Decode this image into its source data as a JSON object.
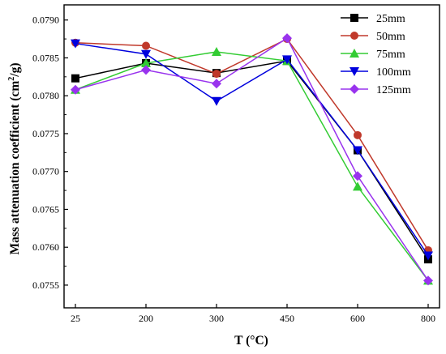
{
  "chart_data": {
    "type": "line",
    "x": [
      "25",
      "200",
      "300",
      "450",
      "600",
      "800"
    ],
    "xlabel": "T (°C)",
    "ylabel_main": "Mass attenuation coefficient (cm",
    "ylabel_sup": "2",
    "ylabel_tail": "/g)",
    "ylim": [
      0.0752,
      0.0792
    ],
    "yticks": [
      "0.0755",
      "0.0760",
      "0.0765",
      "0.0770",
      "0.0775",
      "0.0780",
      "0.0785",
      "0.0790"
    ],
    "ytick_values": [
      0.0755,
      0.076,
      0.0765,
      0.077,
      0.0775,
      0.078,
      0.0785,
      0.079
    ],
    "legend_position": "top-right",
    "grid": false,
    "series": [
      {
        "name": "25mm",
        "color": "#000000",
        "marker": "square",
        "values": [
          0.07823,
          0.07843,
          0.0783,
          0.07846,
          0.07728,
          0.07584
        ]
      },
      {
        "name": "50mm",
        "color": "#c0392b",
        "marker": "circle",
        "values": [
          0.0787,
          0.07866,
          0.07829,
          0.07875,
          0.07748,
          0.07596
        ]
      },
      {
        "name": "75mm",
        "color": "#33cc33",
        "marker": "triangle-up",
        "values": [
          0.07808,
          0.07843,
          0.07858,
          0.07846,
          0.0768,
          0.07556
        ]
      },
      {
        "name": "100mm",
        "color": "#0000dd",
        "marker": "triangle-down",
        "values": [
          0.07869,
          0.07855,
          0.07793,
          0.07848,
          0.07728,
          0.07589
        ]
      },
      {
        "name": "125mm",
        "color": "#9933ee",
        "marker": "diamond",
        "values": [
          0.07808,
          0.07834,
          0.07816,
          0.07876,
          0.07694,
          0.07556
        ]
      }
    ]
  }
}
